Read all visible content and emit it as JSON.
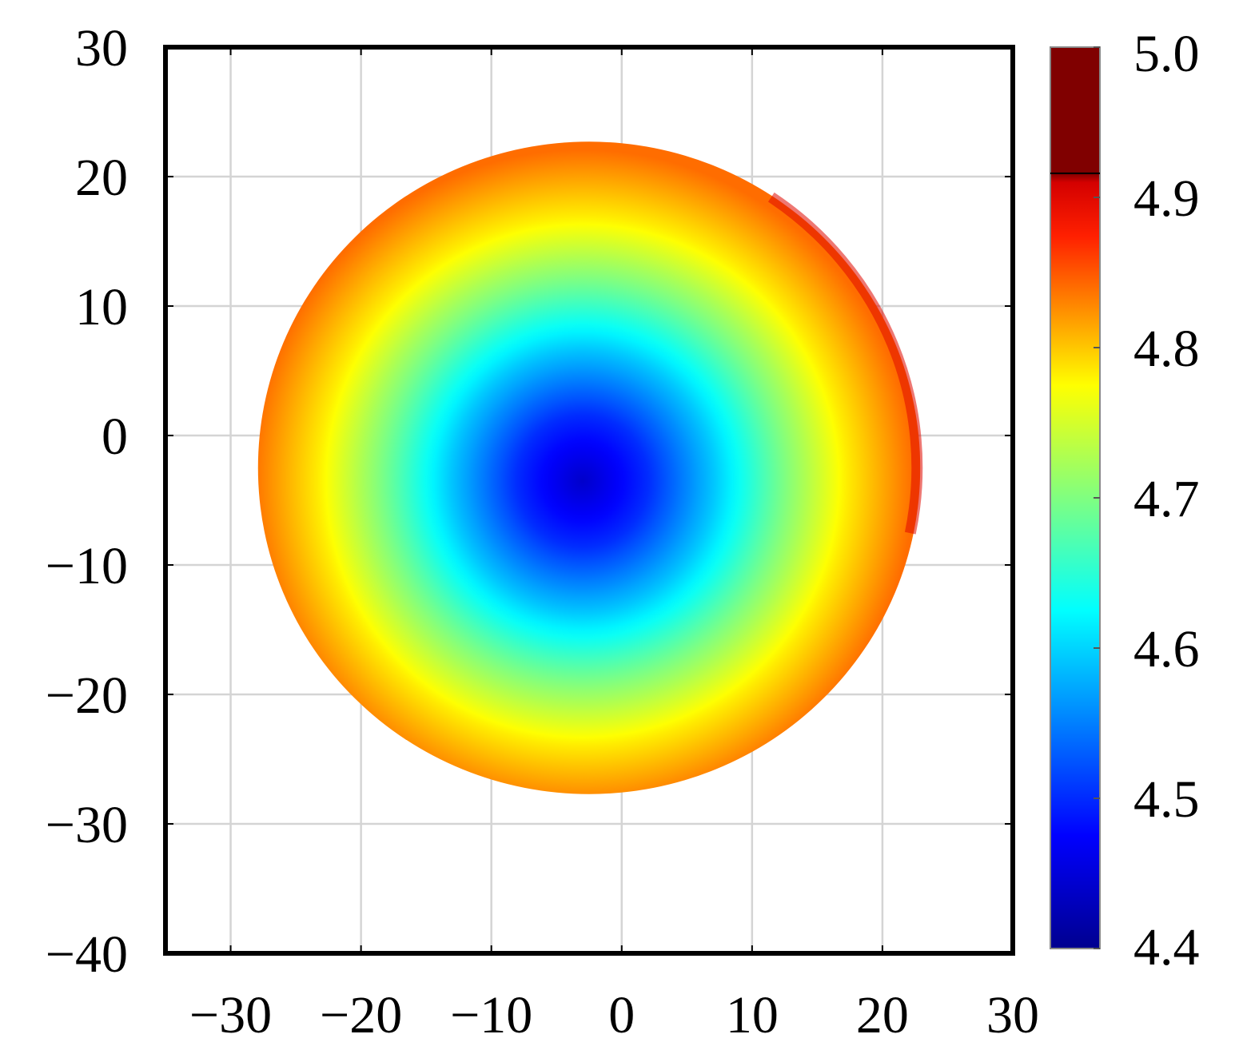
{
  "chart_data": {
    "type": "heatmap",
    "title": "",
    "xlabel": "",
    "ylabel": "",
    "xlim": [
      -35,
      30
    ],
    "ylim": [
      -40,
      30
    ],
    "grid": true,
    "x_ticks": [
      -30,
      -20,
      -10,
      0,
      10,
      20,
      30
    ],
    "x_tick_labels": [
      "−30",
      "−20",
      "−10",
      "0",
      "10",
      "20",
      "30"
    ],
    "y_ticks": [
      30,
      20,
      10,
      0,
      -10,
      -20,
      -30,
      -40
    ],
    "y_tick_labels": [
      "30",
      "20",
      "10",
      "0",
      "−10",
      "−20",
      "−30",
      "−40"
    ],
    "colorbar": {
      "colormap": "jet",
      "range": [
        4.4,
        5.0
      ],
      "ticks": [
        5.0,
        4.9,
        4.8,
        4.7,
        4.6,
        4.5,
        4.4
      ],
      "tick_labels": [
        "5.0",
        "4.9",
        "4.8",
        "4.7",
        "4.6",
        "4.5",
        "4.4"
      ],
      "placement": "right"
    },
    "surface": {
      "shape": "circular aperture",
      "center": [
        -2.5,
        -2.5
      ],
      "radius_x": 25.4,
      "radius_y": 25.2,
      "minimum": {
        "x": -3,
        "y": -3.5,
        "value": 4.44
      },
      "edge_value": 4.84,
      "max_value": 4.9,
      "profile": [
        {
          "r": 0,
          "value": 4.44
        },
        {
          "r": 5,
          "value": 4.5
        },
        {
          "r": 10,
          "value": 4.59
        },
        {
          "r": 15,
          "value": 4.69
        },
        {
          "r": 20,
          "value": 4.78
        },
        {
          "r": 25.4,
          "value": 4.84
        }
      ]
    }
  }
}
